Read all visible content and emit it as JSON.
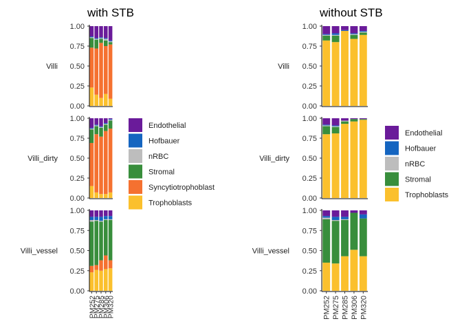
{
  "chart_data": [
    {
      "type": "bar",
      "stacked": true,
      "title": "with STB",
      "ylim": [
        0,
        1
      ],
      "yticks": [
        "0.00",
        "0.25",
        "0.50",
        "0.75",
        "1.00"
      ],
      "categories": [
        "PM252",
        "PM275",
        "PM285",
        "PM306",
        "PM320"
      ],
      "stack_order_bottom_to_top": [
        "Trophoblasts",
        "Syncytiotrophoblast",
        "Stromal",
        "nRBC",
        "Hofbauer",
        "Endothelial"
      ],
      "legend": [
        "Endothelial",
        "Hofbauer",
        "nRBC",
        "Stromal",
        "Syncytiotrophoblast",
        "Trophoblasts"
      ],
      "legend_position": "right",
      "colors": {
        "Endothelial": "#6a1b9a",
        "Hofbauer": "#1565c0",
        "nRBC": "#bdbdbd",
        "Stromal": "#388e3c",
        "Syncytiotrophoblast": "#f57130",
        "Trophoblasts": "#fbc02d"
      },
      "facets": [
        {
          "label": "Villi",
          "values": {
            "Trophoblasts": [
              0.23,
              0.14,
              0.1,
              0.15,
              0.09
            ],
            "Syncytiotrophoblast": [
              0.5,
              0.58,
              0.69,
              0.6,
              0.68
            ],
            "Stromal": [
              0.12,
              0.11,
              0.05,
              0.07,
              0.03
            ],
            "nRBC": [
              0.01,
              0.01,
              0.01,
              0.02,
              0.01
            ],
            "Hofbauer": [
              0.01,
              0.01,
              0.01,
              0.01,
              0.01
            ],
            "Endothelial": [
              0.13,
              0.15,
              0.14,
              0.15,
              0.18
            ]
          }
        },
        {
          "label": "Villi_dirty",
          "values": {
            "Trophoblasts": [
              0.15,
              0.07,
              0.05,
              0.05,
              0.07
            ],
            "Syncytiotrophoblast": [
              0.54,
              0.73,
              0.72,
              0.79,
              0.8
            ],
            "Stromal": [
              0.17,
              0.1,
              0.11,
              0.08,
              0.1
            ],
            "nRBC": [
              0.01,
              0.01,
              0.01,
              0.01,
              0.01
            ],
            "Hofbauer": [
              0.01,
              0.01,
              0.01,
              0.01,
              0.01
            ],
            "Endothelial": [
              0.12,
              0.08,
              0.1,
              0.06,
              0.01
            ]
          }
        },
        {
          "label": "Villi_vessel",
          "values": {
            "Trophoblasts": [
              0.23,
              0.26,
              0.25,
              0.27,
              0.28
            ],
            "Syncytiotrophoblast": [
              0.08,
              0.06,
              0.13,
              0.17,
              0.1
            ],
            "Stromal": [
              0.55,
              0.55,
              0.48,
              0.44,
              0.5
            ],
            "nRBC": [
              0.02,
              0.01,
              0.01,
              0.01,
              0.01
            ],
            "Hofbauer": [
              0.04,
              0.04,
              0.05,
              0.04,
              0.04
            ],
            "Endothelial": [
              0.08,
              0.08,
              0.08,
              0.07,
              0.07
            ]
          }
        }
      ]
    },
    {
      "type": "bar",
      "stacked": true,
      "title": "without STB",
      "ylim": [
        0,
        1
      ],
      "yticks": [
        "0.00",
        "0.25",
        "0.50",
        "0.75",
        "1.00"
      ],
      "categories": [
        "PM252",
        "PM275",
        "PM285",
        "PM306",
        "PM320"
      ],
      "stack_order_bottom_to_top": [
        "Trophoblasts",
        "Stromal",
        "nRBC",
        "Hofbauer",
        "Endothelial"
      ],
      "legend": [
        "Endothelial",
        "Hofbauer",
        "nRBC",
        "Stromal",
        "Trophoblasts"
      ],
      "legend_position": "right",
      "colors": {
        "Endothelial": "#6a1b9a",
        "Hofbauer": "#1565c0",
        "nRBC": "#bdbdbd",
        "Stromal": "#388e3c",
        "Trophoblasts": "#fbc02d"
      },
      "facets": [
        {
          "label": "Villi",
          "values": {
            "Trophoblasts": [
              0.82,
              0.8,
              0.94,
              0.84,
              0.89
            ],
            "Stromal": [
              0.06,
              0.08,
              0.0,
              0.05,
              0.03
            ],
            "nRBC": [
              0.01,
              0.01,
              0.0,
              0.01,
              0.01
            ],
            "Hofbauer": [
              0.01,
              0.02,
              0.01,
              0.01,
              0.01
            ],
            "Endothelial": [
              0.1,
              0.09,
              0.05,
              0.09,
              0.06
            ]
          }
        },
        {
          "label": "Villi_dirty",
          "values": {
            "Trophoblasts": [
              0.8,
              0.81,
              0.93,
              0.96,
              0.98
            ],
            "Stromal": [
              0.1,
              0.08,
              0.03,
              0.03,
              0.01
            ],
            "nRBC": [
              0.01,
              0.01,
              0.01,
              0.0,
              0.0
            ],
            "Hofbauer": [
              0.01,
              0.01,
              0.0,
              0.0,
              0.0
            ],
            "Endothelial": [
              0.08,
              0.09,
              0.03,
              0.01,
              0.01
            ]
          }
        },
        {
          "label": "Villi_vessel",
          "values": {
            "Trophoblasts": [
              0.35,
              0.34,
              0.43,
              0.51,
              0.43
            ],
            "Stromal": [
              0.54,
              0.53,
              0.45,
              0.46,
              0.47
            ],
            "nRBC": [
              0.02,
              0.01,
              0.01,
              0.0,
              0.0
            ],
            "Hofbauer": [
              0.02,
              0.04,
              0.03,
              0.0,
              0.05
            ],
            "Endothelial": [
              0.07,
              0.08,
              0.08,
              0.03,
              0.05
            ]
          }
        }
      ]
    }
  ]
}
